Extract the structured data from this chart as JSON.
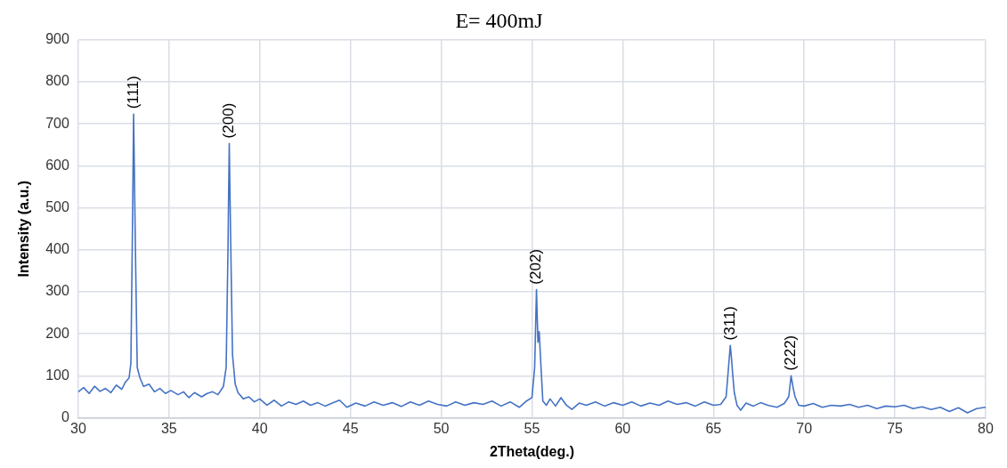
{
  "chart_data": {
    "type": "line",
    "title": "E= 400mJ",
    "xlabel": "2Theta(deg.)",
    "ylabel": "Intensity (a.u.)",
    "x": [
      30,
      30.3,
      30.6,
      30.9,
      31.2,
      31.5,
      31.8,
      32.1,
      32.4,
      32.6,
      32.8,
      32.9,
      33.0,
      33.05,
      33.15,
      33.25,
      33.4,
      33.6,
      33.9,
      34.2,
      34.5,
      34.8,
      35.1,
      35.5,
      35.8,
      36.1,
      36.4,
      36.8,
      37.1,
      37.4,
      37.7,
      38.0,
      38.15,
      38.25,
      38.32,
      38.4,
      38.5,
      38.65,
      38.8,
      39.1,
      39.4,
      39.7,
      40.0,
      40.4,
      40.8,
      41.2,
      41.6,
      42.0,
      42.4,
      42.8,
      43.2,
      43.6,
      44.0,
      44.4,
      44.8,
      45.3,
      45.8,
      46.3,
      46.8,
      47.3,
      47.8,
      48.3,
      48.8,
      49.3,
      49.8,
      50.3,
      50.8,
      51.3,
      51.8,
      52.3,
      52.8,
      53.3,
      53.8,
      54.3,
      54.7,
      55.0,
      55.15,
      55.25,
      55.33,
      55.4,
      55.5,
      55.6,
      55.8,
      56.0,
      56.3,
      56.6,
      56.9,
      57.2,
      57.6,
      58.0,
      58.5,
      59.0,
      59.5,
      60.0,
      60.5,
      61.0,
      61.5,
      62.0,
      62.5,
      63.0,
      63.5,
      64.0,
      64.5,
      65.0,
      65.4,
      65.7,
      65.85,
      65.93,
      66.0,
      66.05,
      66.15,
      66.3,
      66.5,
      66.8,
      67.2,
      67.6,
      68.0,
      68.5,
      68.9,
      69.15,
      69.28,
      69.4,
      69.5,
      69.7,
      70.0,
      70.5,
      71.0,
      71.5,
      72.0,
      72.5,
      73.0,
      73.5,
      74.0,
      74.5,
      75.0,
      75.5,
      76.0,
      76.5,
      77.0,
      77.5,
      78.0,
      78.5,
      79.0,
      79.5,
      80.0
    ],
    "series": [
      {
        "color": "#4472c4",
        "values": [
          62,
          72,
          58,
          75,
          63,
          70,
          60,
          78,
          68,
          85,
          95,
          130,
          500,
          723,
          400,
          120,
          95,
          75,
          80,
          62,
          70,
          58,
          65,
          55,
          62,
          48,
          60,
          50,
          58,
          62,
          55,
          75,
          120,
          400,
          653,
          420,
          150,
          80,
          60,
          45,
          50,
          38,
          45,
          30,
          42,
          28,
          38,
          32,
          40,
          30,
          36,
          28,
          35,
          42,
          25,
          35,
          28,
          38,
          30,
          36,
          27,
          38,
          30,
          40,
          32,
          28,
          38,
          30,
          36,
          32,
          40,
          28,
          38,
          25,
          40,
          48,
          120,
          305,
          180,
          205,
          120,
          40,
          30,
          45,
          28,
          48,
          30,
          20,
          35,
          30,
          38,
          28,
          36,
          30,
          38,
          28,
          35,
          30,
          40,
          32,
          36,
          28,
          38,
          30,
          32,
          50,
          130,
          172,
          140,
          110,
          60,
          30,
          18,
          35,
          28,
          36,
          30,
          25,
          34,
          50,
          100,
          70,
          50,
          30,
          28,
          34,
          25,
          30,
          28,
          32,
          25,
          30,
          22,
          28,
          26,
          30,
          22,
          26,
          20,
          25,
          15,
          24,
          12,
          22,
          25
        ]
      }
    ],
    "xlim": [
      30,
      80
    ],
    "xticks": [
      30,
      35,
      40,
      45,
      50,
      55,
      60,
      65,
      70,
      75,
      80
    ],
    "ylim": [
      0,
      900
    ],
    "yticks": [
      0,
      100,
      200,
      300,
      400,
      500,
      600,
      700,
      800,
      900
    ],
    "grid": true,
    "legend": false,
    "marker": "none",
    "line_style": "solid",
    "annotations": [
      {
        "text": "(111)",
        "x": 33.05,
        "y": 723
      },
      {
        "text": "(200)",
        "x": 38.32,
        "y": 653
      },
      {
        "text": "(202)",
        "x": 55.25,
        "y": 305
      },
      {
        "text": "(311)",
        "x": 65.93,
        "y": 172
      },
      {
        "text": "(222)",
        "x": 69.28,
        "y": 100
      }
    ]
  }
}
